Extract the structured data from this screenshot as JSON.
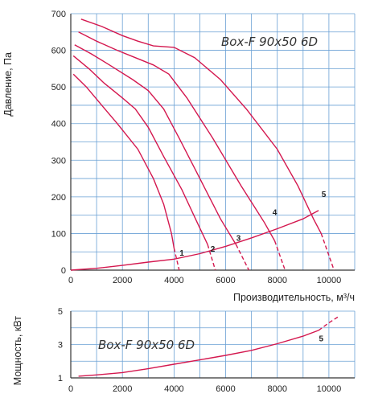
{
  "colors": {
    "curve": "#d4184f",
    "grid": "#6aa0d4",
    "axis": "#333333"
  },
  "chart_data": [
    {
      "type": "line",
      "title": "Box-F 90x50 6D",
      "xlabel": "Производительность, м³/ч",
      "ylabel": "Давление, Па",
      "xlim": [
        0,
        11000
      ],
      "ylim": [
        0,
        700
      ],
      "x_ticks": [
        "0",
        "2000",
        "4000",
        "6000",
        "8000",
        "10000"
      ],
      "y_ticks": [
        "0",
        "100",
        "200",
        "300",
        "400",
        "500",
        "600",
        "700"
      ],
      "grid": true,
      "series": [
        {
          "name": "1",
          "solid": [
            [
              100,
              535
            ],
            [
              600,
              500
            ],
            [
              1200,
              450
            ],
            [
              1800,
              400
            ],
            [
              2600,
              330
            ],
            [
              3200,
              250
            ],
            [
              3600,
              180
            ],
            [
              3900,
              100
            ],
            [
              4000,
              60
            ]
          ],
          "dashed": [
            [
              4000,
              60
            ],
            [
              4200,
              0
            ]
          ]
        },
        {
          "name": "2",
          "solid": [
            [
              100,
              585
            ],
            [
              700,
              550
            ],
            [
              1300,
              510
            ],
            [
              2000,
              470
            ],
            [
              2500,
              440
            ],
            [
              3000,
              390
            ],
            [
              3600,
              310
            ],
            [
              4300,
              220
            ],
            [
              4900,
              130
            ],
            [
              5300,
              70
            ]
          ],
          "dashed": [
            [
              5300,
              70
            ],
            [
              5600,
              0
            ]
          ]
        },
        {
          "name": "3",
          "solid": [
            [
              150,
              615
            ],
            [
              800,
              590
            ],
            [
              1500,
              560
            ],
            [
              2400,
              520
            ],
            [
              3000,
              490
            ],
            [
              3600,
              440
            ],
            [
              4200,
              360
            ],
            [
              5000,
              250
            ],
            [
              5800,
              140
            ],
            [
              6400,
              70
            ]
          ],
          "dashed": [
            [
              6400,
              70
            ],
            [
              6900,
              0
            ]
          ]
        },
        {
          "name": "4",
          "solid": [
            [
              300,
              650
            ],
            [
              1000,
              625
            ],
            [
              1800,
              600
            ],
            [
              2500,
              580
            ],
            [
              3200,
              560
            ],
            [
              3800,
              535
            ],
            [
              4500,
              470
            ],
            [
              5500,
              360
            ],
            [
              6600,
              230
            ],
            [
              7500,
              130
            ],
            [
              7900,
              80
            ]
          ],
          "dashed": [
            [
              7900,
              80
            ],
            [
              8300,
              0
            ]
          ]
        },
        {
          "name": "5",
          "solid": [
            [
              400,
              685
            ],
            [
              1200,
              665
            ],
            [
              2000,
              640
            ],
            [
              2600,
              625
            ],
            [
              3200,
              612
            ],
            [
              4000,
              608
            ],
            [
              4800,
              580
            ],
            [
              5800,
              520
            ],
            [
              6800,
              440
            ],
            [
              8000,
              330
            ],
            [
              8800,
              230
            ],
            [
              9400,
              140
            ],
            [
              9700,
              100
            ]
          ],
          "dashed": [
            [
              9700,
              100
            ],
            [
              10200,
              0
            ]
          ]
        }
      ],
      "system_curve": [
        [
          0,
          0
        ],
        [
          1000,
          5
        ],
        [
          2000,
          13
        ],
        [
          3000,
          22
        ],
        [
          4000,
          30
        ],
        [
          5000,
          45
        ],
        [
          6000,
          65
        ],
        [
          7000,
          88
        ],
        [
          8000,
          113
        ],
        [
          9000,
          140
        ],
        [
          9600,
          163
        ]
      ],
      "curve_labels": [
        "1",
        "2",
        "3",
        "4",
        "5"
      ]
    },
    {
      "type": "line",
      "title": "Box-F 90x50 6D",
      "xlabel": "",
      "ylabel": "Мощность, кВт",
      "xlim": [
        0,
        11000
      ],
      "ylim": [
        1,
        5
      ],
      "x_ticks": [
        "0",
        "2000",
        "4000",
        "6000",
        "8000",
        "10000"
      ],
      "y_ticks": [
        "1",
        "3",
        "5"
      ],
      "grid": true,
      "series": [
        {
          "name": "5",
          "solid": [
            [
              300,
              1.1
            ],
            [
              1000,
              1.18
            ],
            [
              2000,
              1.32
            ],
            [
              3000,
              1.55
            ],
            [
              4000,
              1.82
            ],
            [
              5000,
              2.08
            ],
            [
              6000,
              2.35
            ],
            [
              7000,
              2.65
            ],
            [
              8000,
              3.05
            ],
            [
              9000,
              3.5
            ],
            [
              9600,
              3.85
            ]
          ],
          "dashed": [
            [
              9600,
              3.85
            ],
            [
              10000,
              4.3
            ],
            [
              10400,
              4.7
            ]
          ]
        }
      ],
      "curve_labels": [
        "5"
      ]
    }
  ]
}
